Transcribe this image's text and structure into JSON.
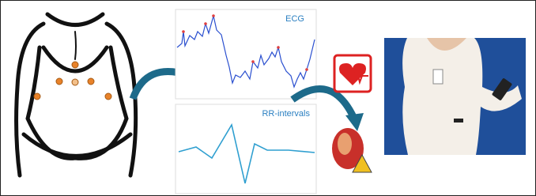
{
  "ecg_panel": {
    "title": "ECG"
  },
  "rr_panel": {
    "title": "RR-intervals"
  }
}
